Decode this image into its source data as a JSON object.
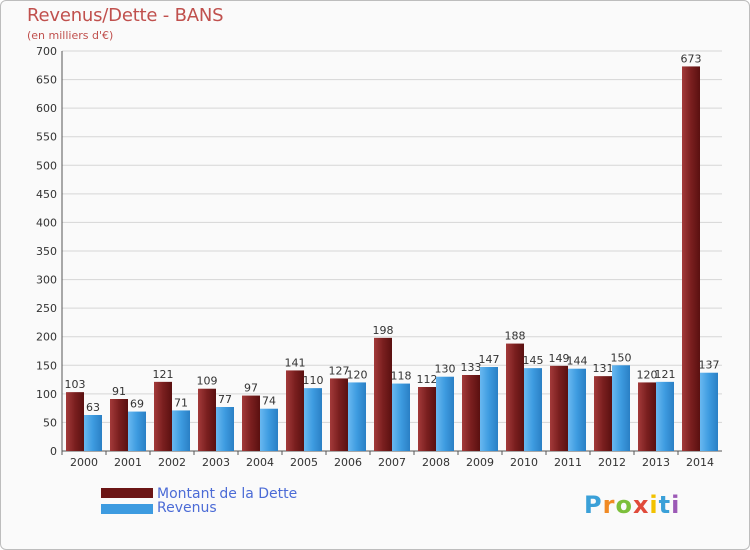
{
  "chart_data": {
    "type": "bar",
    "title": "Revenus/Dette - BANS",
    "subtitle": "(en milliers d'€)",
    "categories": [
      "2000",
      "2001",
      "2002",
      "2003",
      "2004",
      "2005",
      "2006",
      "2007",
      "2008",
      "2009",
      "2010",
      "2011",
      "2012",
      "2013",
      "2014"
    ],
    "series": [
      {
        "name": "Montant de la Dette",
        "color": "#7a1f1f",
        "values": [
          103,
          91,
          121,
          109,
          97,
          141,
          127,
          198,
          112,
          133,
          188,
          149,
          131,
          120,
          673
        ]
      },
      {
        "name": "Revenus",
        "color": "#3d9be0",
        "values": [
          63,
          69,
          71,
          77,
          74,
          110,
          120,
          118,
          130,
          147,
          145,
          144,
          150,
          121,
          137
        ]
      }
    ],
    "ylim": [
      0,
      700
    ],
    "yticks": [
      0,
      50,
      100,
      150,
      200,
      250,
      300,
      350,
      400,
      450,
      500,
      550,
      600,
      650,
      700
    ],
    "grid": true,
    "legend": "bottom-left"
  },
  "legend": {
    "debt_label": "Montant de la Dette",
    "revenue_label": "Revenus"
  },
  "logo": {
    "text": "Proxiti"
  }
}
